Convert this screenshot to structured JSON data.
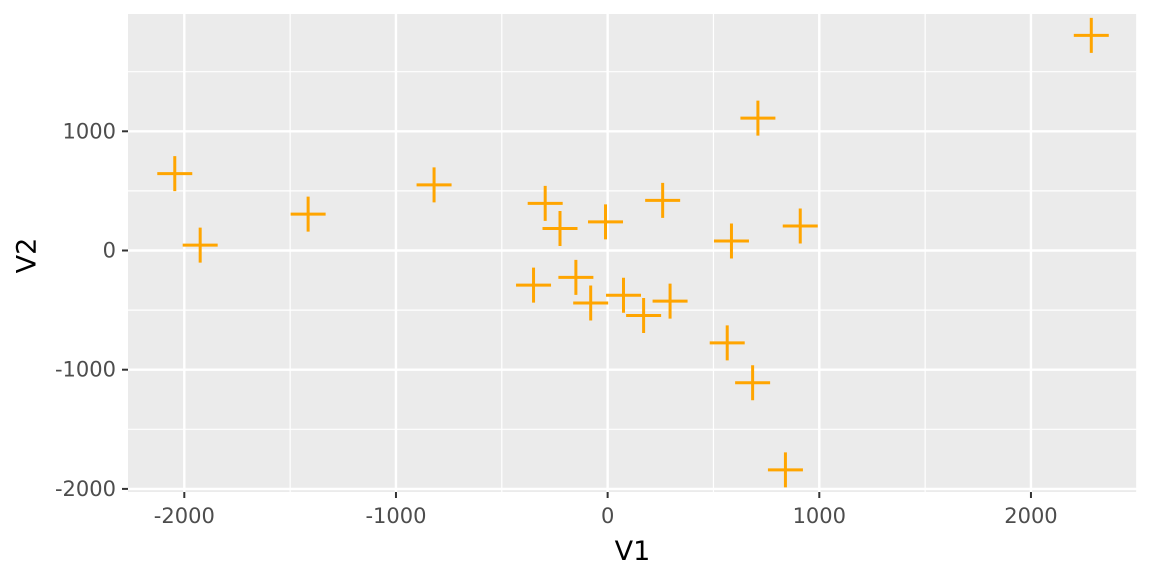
{
  "chart": {
    "xlabel": "V1",
    "ylabel": "V2"
  },
  "colors": {
    "figure_background": "#FFFFFF",
    "panel_background": "#EBEBEB",
    "grid": "#FFFFFF",
    "tick_mark": "#333333",
    "tick_label": "#4D4D4D",
    "axis_title": "#000000",
    "point": "#FFA500"
  },
  "chart_data": {
    "type": "scatter",
    "title": "",
    "xlabel": "V1",
    "ylabel": "V2",
    "marker": "plus",
    "legend": "none",
    "grid": true,
    "xlim": [
      -2266,
      2501
    ],
    "ylim": [
      -2026,
      1984
    ],
    "x_major_ticks": [
      -2000,
      -1000,
      0,
      1000,
      2000
    ],
    "x_minor_ticks": [
      -1500,
      -500,
      500,
      1500,
      2500
    ],
    "y_major_ticks": [
      -2000,
      -1000,
      0,
      1000
    ],
    "y_minor_ticks": [
      -1500,
      -500,
      500,
      1500
    ],
    "points": [
      {
        "x": -2045,
        "y": 645
      },
      {
        "x": -1925,
        "y": 45
      },
      {
        "x": -1415,
        "y": 305
      },
      {
        "x": -820,
        "y": 550
      },
      {
        "x": -295,
        "y": 395
      },
      {
        "x": -225,
        "y": 185
      },
      {
        "x": -10,
        "y": 240
      },
      {
        "x": 260,
        "y": 420
      },
      {
        "x": -350,
        "y": -290
      },
      {
        "x": -150,
        "y": -225
      },
      {
        "x": -80,
        "y": -440
      },
      {
        "x": 75,
        "y": -375
      },
      {
        "x": 170,
        "y": -545
      },
      {
        "x": 295,
        "y": -425
      },
      {
        "x": 565,
        "y": -775
      },
      {
        "x": 685,
        "y": -1110
      },
      {
        "x": 840,
        "y": -1840
      },
      {
        "x": 710,
        "y": 1110
      },
      {
        "x": 585,
        "y": 80
      },
      {
        "x": 910,
        "y": 205
      },
      {
        "x": 2285,
        "y": 1805
      }
    ]
  }
}
